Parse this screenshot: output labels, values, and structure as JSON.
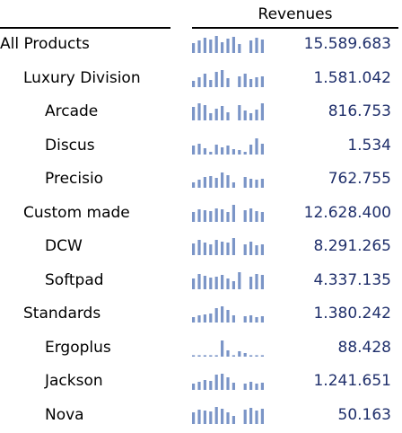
{
  "header": "Revenues",
  "colors": {
    "bar": "#7b95c7",
    "value_text": "#1f2f6b"
  },
  "chart_data": {
    "type": "table",
    "columns": [
      "",
      "Revenues"
    ],
    "rows": [
      {
        "label": "All Products",
        "level": 0,
        "value": "15.589.683",
        "spark": [
          0.55,
          0.7,
          0.85,
          0.75,
          0.95,
          0.6,
          0.8,
          0.9,
          0.5,
          0,
          0.7,
          0.85,
          0.75
        ]
      },
      {
        "label": "Luxury Division",
        "level": 1,
        "value": "1.581.042",
        "spark": [
          0.35,
          0.55,
          0.75,
          0.4,
          0.85,
          0.95,
          0.5,
          0,
          0.6,
          0.75,
          0.45,
          0.55,
          0.6
        ]
      },
      {
        "label": "Arcade",
        "level": 2,
        "value": "816.753",
        "spark": [
          0.75,
          0.95,
          0.85,
          0.4,
          0.65,
          0.8,
          0.45,
          0,
          0.85,
          0.55,
          0.4,
          0.6,
          0.95
        ]
      },
      {
        "label": "Discus",
        "level": 2,
        "value": "1.534",
        "spark": [
          0.5,
          0.6,
          0.35,
          0.15,
          0.55,
          0.4,
          0.5,
          0.3,
          0.25,
          0.15,
          0.55,
          0.9,
          0.6
        ]
      },
      {
        "label": "Precisio",
        "level": 2,
        "value": "762.755",
        "spark": [
          0.3,
          0.45,
          0.6,
          0.65,
          0.55,
          0.85,
          0.7,
          0.3,
          0,
          0.6,
          0.5,
          0.45,
          0.5
        ]
      },
      {
        "label": "Custom made",
        "level": 1,
        "value": "12.628.400",
        "spark": [
          0.55,
          0.7,
          0.65,
          0.6,
          0.75,
          0.7,
          0.55,
          0.95,
          0,
          0.65,
          0.75,
          0.6,
          0.55
        ]
      },
      {
        "label": "DCW",
        "level": 2,
        "value": "8.291.265",
        "spark": [
          0.65,
          0.85,
          0.7,
          0.6,
          0.85,
          0.75,
          0.7,
          0.95,
          0,
          0.6,
          0.75,
          0.55,
          0.6
        ]
      },
      {
        "label": "Softpad",
        "level": 2,
        "value": "4.337.135",
        "spark": [
          0.6,
          0.85,
          0.75,
          0.65,
          0.7,
          0.8,
          0.6,
          0.45,
          0.95,
          0,
          0.7,
          0.85,
          0.8
        ]
      },
      {
        "label": "Standards",
        "level": 1,
        "value": "1.380.242",
        "spark": [
          0.3,
          0.4,
          0.45,
          0.5,
          0.8,
          0.9,
          0.7,
          0.4,
          0,
          0.35,
          0.4,
          0.3,
          0.35
        ]
      },
      {
        "label": "Ergoplus",
        "level": 2,
        "value": "88.428",
        "spark": [
          0.08,
          0.08,
          0.08,
          0.08,
          0.08,
          0.9,
          0.35,
          0.08,
          0.3,
          0.2,
          0.08,
          0.08,
          0.08
        ]
      },
      {
        "label": "Jackson",
        "level": 2,
        "value": "1.241.651",
        "spark": [
          0.35,
          0.45,
          0.55,
          0.5,
          0.85,
          0.9,
          0.7,
          0.4,
          0,
          0.35,
          0.45,
          0.35,
          0.4
        ]
      },
      {
        "label": "Nova",
        "level": 2,
        "value": "50.163",
        "spark": [
          0.65,
          0.8,
          0.75,
          0.7,
          0.95,
          0.85,
          0.65,
          0.45,
          0,
          0.8,
          0.9,
          0.75,
          0.85
        ]
      }
    ]
  }
}
